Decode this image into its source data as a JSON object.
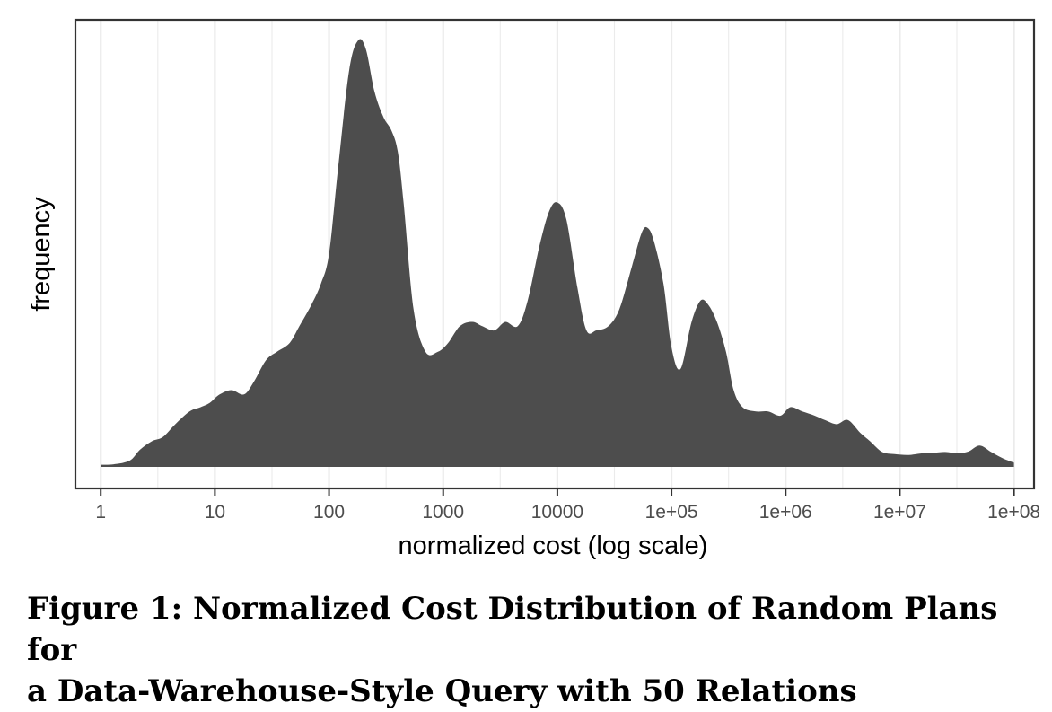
{
  "figure": {
    "caption_line1": "Figure 1: Normalized Cost Distribution of Random Plans for",
    "caption_line2": "a Data-Warehouse-Style Query with 50 Relations"
  },
  "chart_data": {
    "type": "area",
    "title": "",
    "xlabel": "normalized cost (log scale)",
    "ylabel": "frequency",
    "x_scale": "log10",
    "xlim": [
      0.6,
      150000000
    ],
    "ylim": [
      0,
      1.05
    ],
    "x_ticks": [
      1,
      10,
      100,
      1000,
      10000,
      100000,
      1000000,
      10000000,
      100000000
    ],
    "x_tick_labels": [
      "1",
      "10",
      "100",
      "1000",
      "10000",
      "1e+05",
      "1e+06",
      "1e+07",
      "1e+08"
    ],
    "y_ticks_shown": false,
    "grid": {
      "vertical_major": true,
      "vertical_minor": true,
      "horizontal": false
    },
    "legend": "none",
    "colors": {
      "fill": "#4d4d4d",
      "grid": "#ebebeb",
      "panel_border": "#333333",
      "background": "#ffffff"
    },
    "series": [
      {
        "x": [
          1,
          1.3,
          1.8,
          2.2,
          2.8,
          3.5,
          4.5,
          6,
          7.5,
          9,
          11,
          14,
          18,
          22,
          28,
          35,
          45,
          55,
          70,
          85,
          100,
          120,
          150,
          180,
          210,
          250,
          300,
          350,
          400,
          450,
          550,
          700,
          900,
          1100,
          1400,
          1800,
          2200,
          2800,
          3500,
          4500,
          5500,
          7000,
          8500,
          10000,
          12000,
          15000,
          18000,
          22000,
          28000,
          35000,
          45000,
          55000,
          62000,
          70000,
          85000,
          100000,
          120000,
          150000,
          180000,
          210000,
          250000,
          300000,
          350000,
          420000,
          550000,
          700000,
          900000,
          1100000,
          1400000,
          1800000,
          2200000,
          2800000,
          3500000,
          4500000,
          5500000,
          7000000,
          9000000,
          12000000,
          16000000,
          20000000,
          25000000,
          32000000,
          40000000,
          50000000,
          63000000,
          80000000,
          100000000
        ],
        "y": [
          0.005,
          0.006,
          0.015,
          0.04,
          0.06,
          0.07,
          0.1,
          0.13,
          0.14,
          0.15,
          0.17,
          0.18,
          0.17,
          0.2,
          0.25,
          0.27,
          0.29,
          0.33,
          0.38,
          0.43,
          0.5,
          0.7,
          0.93,
          1.0,
          0.98,
          0.88,
          0.82,
          0.79,
          0.74,
          0.62,
          0.37,
          0.27,
          0.27,
          0.29,
          0.33,
          0.34,
          0.33,
          0.32,
          0.34,
          0.33,
          0.39,
          0.52,
          0.6,
          0.62,
          0.58,
          0.42,
          0.32,
          0.32,
          0.33,
          0.37,
          0.47,
          0.55,
          0.56,
          0.53,
          0.43,
          0.28,
          0.23,
          0.34,
          0.39,
          0.38,
          0.34,
          0.27,
          0.18,
          0.14,
          0.13,
          0.13,
          0.12,
          0.14,
          0.13,
          0.12,
          0.11,
          0.1,
          0.11,
          0.08,
          0.06,
          0.035,
          0.03,
          0.028,
          0.032,
          0.033,
          0.035,
          0.032,
          0.036,
          0.05,
          0.035,
          0.02,
          0.01
        ]
      }
    ]
  }
}
